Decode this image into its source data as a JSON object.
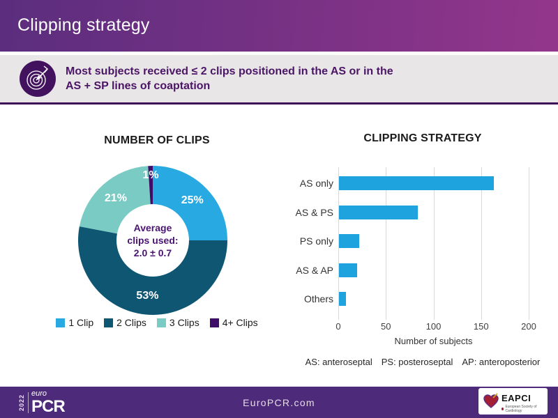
{
  "header": {
    "title": "Clipping strategy"
  },
  "callout": {
    "line1": "Most subjects received ≤ 2 clips positioned in the AS or in the",
    "line2": "AS + SP lines of coaptation"
  },
  "theme": {
    "header_gradient_left": "#5B2D7E",
    "header_gradient_right": "#93368B",
    "banner_bg": "#E9E6E8",
    "banner_border": "#3D0F56",
    "banner_text": "#4B1566",
    "icon_bg": "#42125F",
    "footer_bg": "#4E2B7A"
  },
  "chart_data": [
    {
      "type": "pie",
      "donut": true,
      "title": "NUMBER OF CLIPS",
      "labels": [
        "1 Clip",
        "2 Clips",
        "3 Clips",
        "4+ Clips"
      ],
      "values": [
        25,
        53,
        21,
        1
      ],
      "unit": "%",
      "data_labels": [
        "25%",
        "53%",
        "21%",
        "1%"
      ],
      "colors": [
        "#29A9E1",
        "#0E5672",
        "#79CBC4",
        "#3F0D68"
      ],
      "center_text": [
        "Average",
        "clips used:",
        "2.0 ± 0.7"
      ],
      "legend_position": "bottom"
    },
    {
      "type": "bar",
      "orientation": "horizontal",
      "title": "CLIPPING STRATEGY",
      "categories": [
        "AS only",
        "AS & PS",
        "PS only",
        "AS & AP",
        "Others"
      ],
      "values": [
        163,
        83,
        21,
        19,
        7
      ],
      "xlabel": "Number of subjects",
      "xlim": [
        0,
        200
      ],
      "xticks": [
        0,
        50,
        100,
        150,
        200
      ],
      "grid": true,
      "bar_color": "#1EA3DE",
      "legend_position": "none"
    }
  ],
  "abbreviations": [
    "AS: anteroseptal",
    "PS: posteroseptal",
    "AP: anteroposterior"
  ],
  "footer": {
    "url": "EuroPCR.com",
    "logo": {
      "year": "2022",
      "euro": "euro",
      "pcr": "PCR"
    },
    "eapci": {
      "name": "EAPCI",
      "subtitle": "European Society of Cardiology"
    }
  }
}
